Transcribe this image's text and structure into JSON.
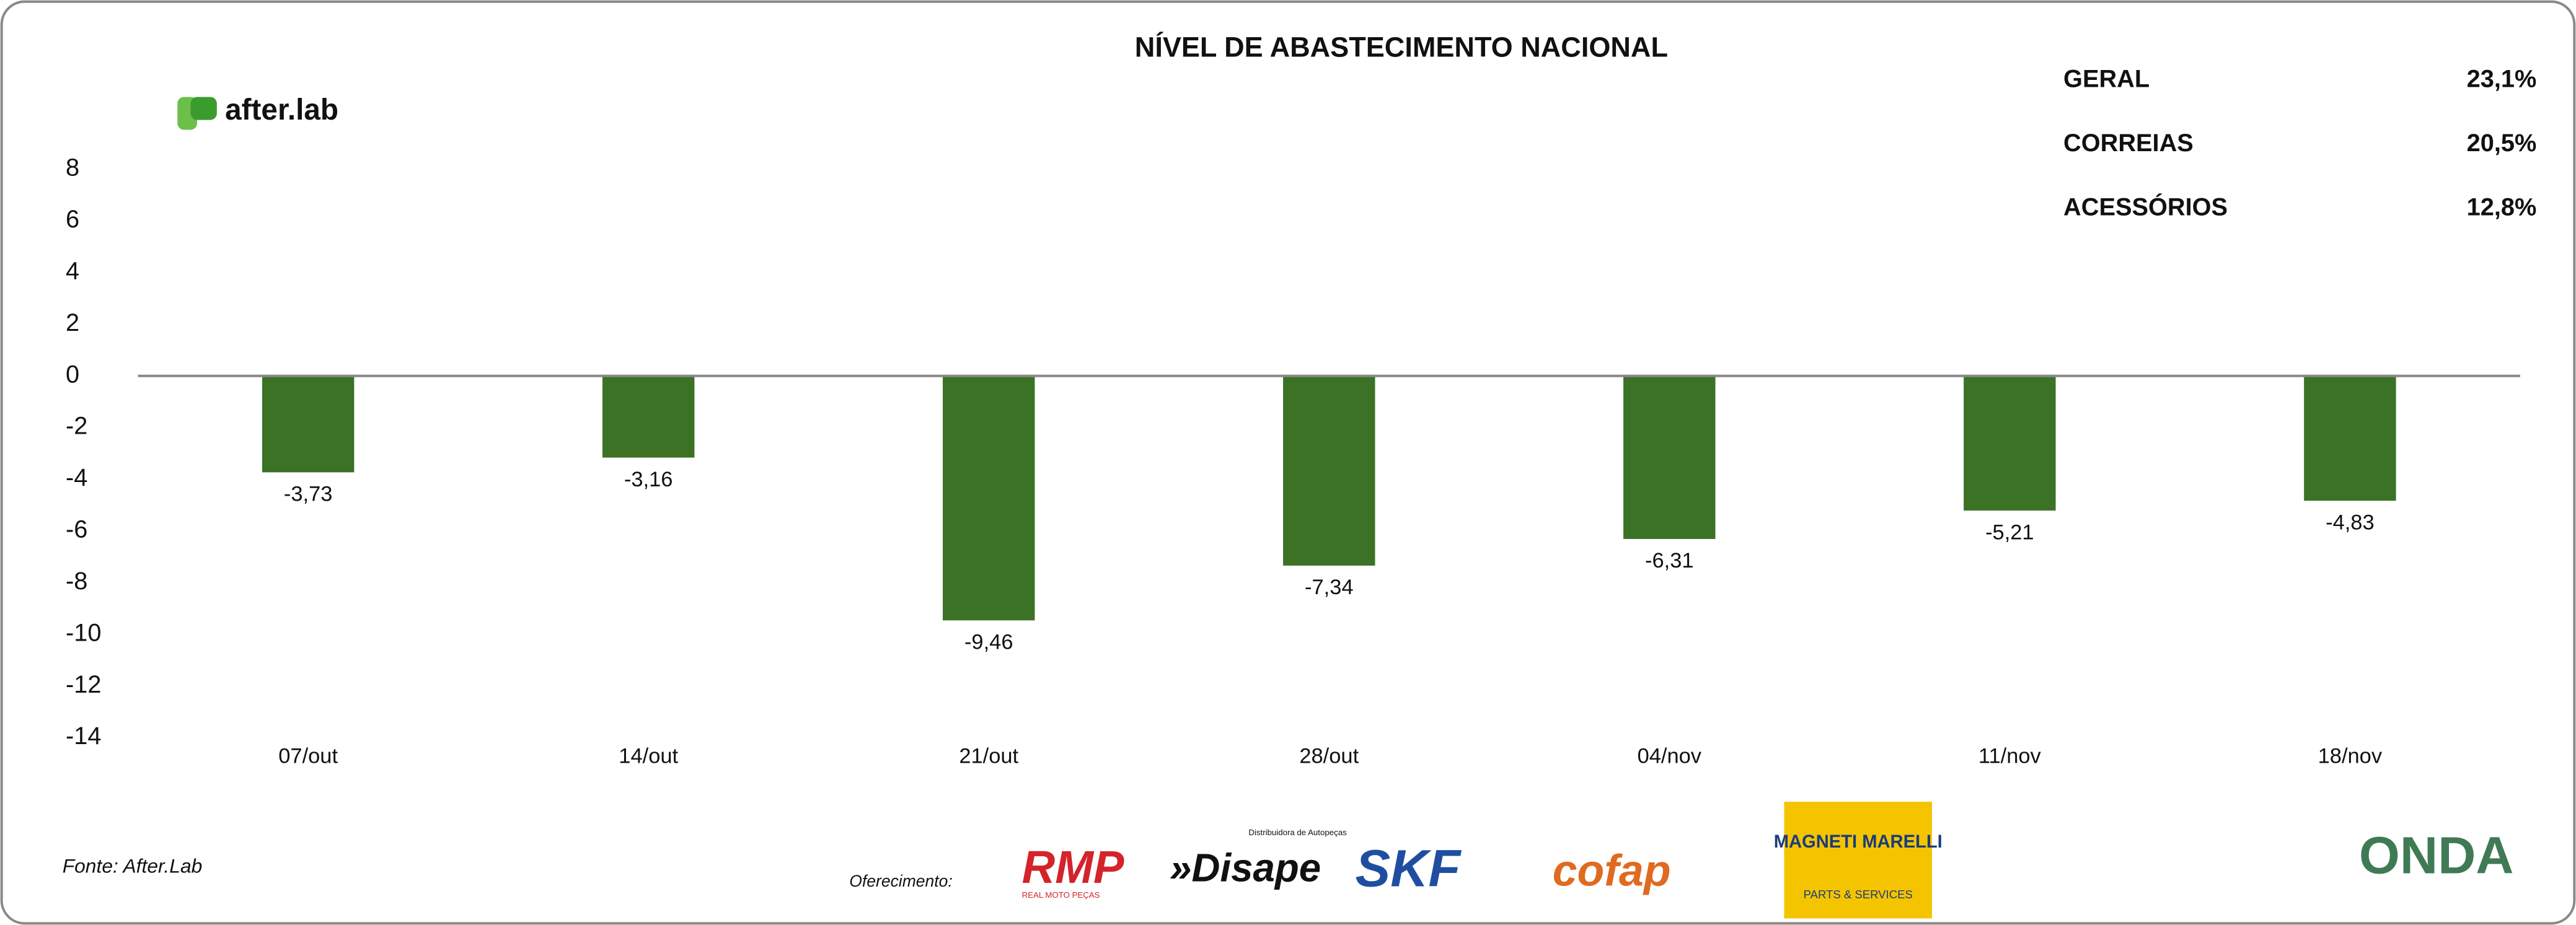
{
  "chart_data": {
    "type": "bar",
    "title": "NÍVEL DE ABASTECIMENTO NACIONAL",
    "categories": [
      "07/out",
      "14/out",
      "21/out",
      "28/out",
      "04/nov",
      "11/nov",
      "18/nov"
    ],
    "values": [
      -3.73,
      -3.16,
      -9.46,
      -7.34,
      -6.31,
      -5.21,
      -4.83
    ],
    "value_labels": [
      "-3,73",
      "-3,16",
      "-9,46",
      "-7,34",
      "-6,31",
      "-5,21",
      "-4,83"
    ],
    "color": "#3b7226",
    "ylim": [
      -14,
      8
    ],
    "yticks": [
      8,
      6,
      4,
      2,
      0,
      -2,
      -4,
      -6,
      -8,
      -10,
      -12,
      -14
    ],
    "grid": false
  },
  "summary": [
    [
      "GERAL",
      "23,1%"
    ],
    [
      "CORREIAS",
      "20,5%"
    ],
    [
      "ACESSÓRIOS",
      "12,8%"
    ]
  ],
  "brand": "after.lab",
  "source": "Fonte: After.Lab",
  "sponsor_intro": "Oferecimento:",
  "sponsors": [
    "RMP",
    "REAL MOTO PEÇAS",
    "»Disape",
    "Distribuidora de Autopeças",
    "SKF",
    "cofap",
    "MAGNETI MARELLI",
    "PARTS & SERVICES"
  ],
  "partner": "ONDA"
}
